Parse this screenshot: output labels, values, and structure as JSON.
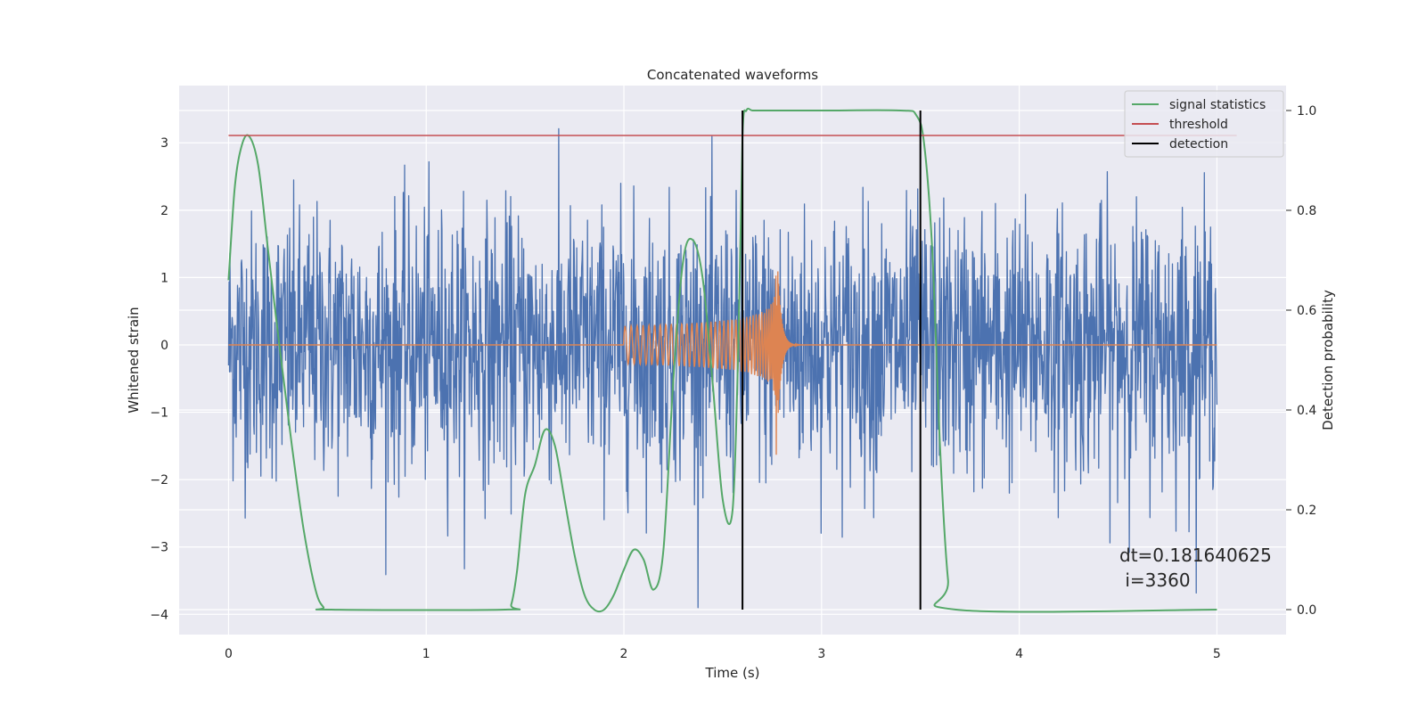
{
  "chart_data": {
    "type": "line",
    "title": "Concatenated waveforms",
    "xlabel": "Time (s)",
    "ylabel": "Whitened strain",
    "ylabel_right": "Detection probability",
    "xlim": [
      -0.25,
      5.35
    ],
    "ylim": [
      -4.3,
      3.85
    ],
    "ylim_right": [
      -0.05,
      1.05
    ],
    "x_ticks": [
      0,
      1,
      2,
      3,
      4,
      5
    ],
    "x_tick_labels": [
      "0",
      "1",
      "2",
      "3",
      "4",
      "5"
    ],
    "y_ticks": [
      -4,
      -3,
      -2,
      -1,
      0,
      1,
      2,
      3
    ],
    "y_tick_labels": [
      "−4",
      "−3",
      "−2",
      "−1",
      "0",
      "1",
      "2",
      "3"
    ],
    "y_right_ticks": [
      0.0,
      0.2,
      0.4,
      0.6,
      0.8,
      1.0
    ],
    "y_right_tick_labels": [
      "0.0",
      "0.2",
      "0.4",
      "0.6",
      "0.8",
      "1.0"
    ],
    "grid": true,
    "legend_position": "top-right",
    "legend": [
      {
        "label": "signal statistics",
        "color": "#55a868"
      },
      {
        "label": "threshold",
        "color": "#c44e52"
      },
      {
        "label": "detection",
        "color": "#000000"
      }
    ],
    "series": [
      {
        "role": "strain",
        "color": "#4c72b0",
        "x_range": [
          0,
          5
        ],
        "noise_range": [
          -3.9,
          3.45
        ]
      },
      {
        "role": "template",
        "color": "#dd8452",
        "x_range": [
          0,
          5
        ],
        "chirp_start": 2.0,
        "chirp_merger": 2.78,
        "peak_amplitude": [
          1.45,
          -1.7
        ]
      },
      {
        "name": "signal statistics",
        "axis": "right",
        "color": "#55a868",
        "x": [
          0,
          0.03,
          0.06,
          0.1,
          0.15,
          0.2,
          0.26,
          0.32,
          0.38,
          0.44,
          0.48,
          0.52,
          1.4,
          1.43,
          1.46,
          1.5,
          1.55,
          1.6,
          1.65,
          1.7,
          1.75,
          1.8,
          1.85,
          1.9,
          1.95,
          2.0,
          2.05,
          2.1,
          2.15,
          2.2,
          2.25,
          2.3,
          2.35,
          2.4,
          2.45,
          2.5,
          2.55,
          2.58,
          2.6,
          2.62,
          2.65,
          2.7,
          3.0,
          3.4,
          3.48,
          3.52,
          3.56,
          3.6,
          3.64,
          3.68,
          5.0
        ],
        "y": [
          0.66,
          0.84,
          0.92,
          0.95,
          0.89,
          0.72,
          0.52,
          0.33,
          0.16,
          0.04,
          0.005,
          0.0,
          0.0,
          0.01,
          0.08,
          0.23,
          0.29,
          0.36,
          0.33,
          0.22,
          0.11,
          0.03,
          0.0,
          0.0,
          0.03,
          0.08,
          0.12,
          0.1,
          0.04,
          0.12,
          0.46,
          0.7,
          0.74,
          0.66,
          0.45,
          0.22,
          0.2,
          0.55,
          0.95,
          1.0,
          1.0,
          1.0,
          1.0,
          1.0,
          0.99,
          0.93,
          0.72,
          0.32,
          0.06,
          0.0,
          0.0
        ]
      },
      {
        "name": "threshold",
        "axis": "right",
        "color": "#c44e52",
        "x": [
          0,
          5.1
        ],
        "y": [
          0.95,
          0.95
        ]
      },
      {
        "name": "detection",
        "axis": "right",
        "color": "#000000",
        "vlines_x": [
          2.6,
          3.5
        ],
        "y_range": [
          0.0,
          1.0
        ]
      }
    ],
    "annotation": {
      "line1": "dt=0.181640625",
      "line2": " i=3360",
      "x": 4.5,
      "y": -3.35
    }
  }
}
